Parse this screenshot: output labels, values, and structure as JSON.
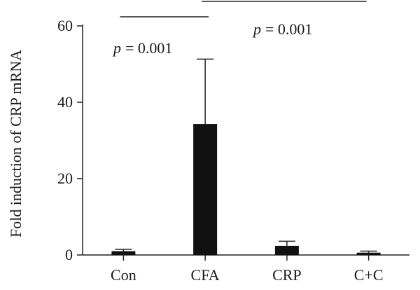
{
  "chart_data": {
    "type": "bar",
    "title": "",
    "xlabel": "",
    "ylabel": "Fold induction of CRP mRNA",
    "categories": [
      "Con",
      "CFA",
      "CRP",
      "C+C"
    ],
    "values": [
      1.0,
      34.3,
      2.4,
      0.6
    ],
    "error_upper": [
      1.5,
      51.3,
      3.6,
      1.0
    ],
    "ylim": [
      0,
      60
    ],
    "yticks": [
      0,
      20,
      40,
      60
    ],
    "bar_color": "#111111",
    "grid": false,
    "annotations": [
      {
        "p_label": "p",
        "p_value": "= 0.001",
        "from_category": "Con",
        "to_category": "CFA"
      },
      {
        "p_label": "p",
        "p_value": "= 0.001",
        "from_category": "CFA",
        "to_category": "C+C"
      }
    ]
  }
}
